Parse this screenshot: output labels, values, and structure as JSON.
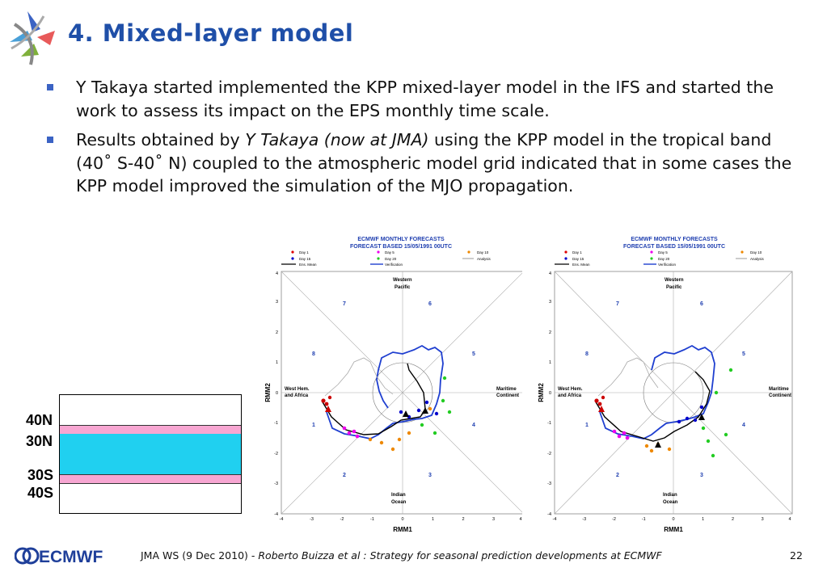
{
  "slide": {
    "title": "4. Mixed-layer model",
    "bullets": [
      {
        "text_a": "Y Takaya started implemented the KPP mixed-layer model in the IFS and started the work to assess its impact on the EPS monthly time scale."
      },
      {
        "text_a": "Results obtained by ",
        "text_italic": "Y Takaya (now at JMA)",
        "text_b": " using the KPP model in the tropical band (40˚ S-40˚ N) coupled to the atmospheric model grid indicated that in some cases the KPP model improved the simulation of the MJO propagation."
      }
    ],
    "band_labels": {
      "n40": "40N",
      "n30": "30N",
      "s30": "30S",
      "s40": "40S"
    },
    "colors": {
      "title": "#1f4fa8",
      "bullet": "#3b63c4",
      "mixed_layer": "#20d0f0",
      "band_edge": "#f7a6d2"
    }
  },
  "plots": {
    "header_line1": "ECMWF MONTHLY FORECASTS",
    "header_line2": "FORECAST  BASED 15/05/1991 00UTC",
    "legend": {
      "day1": "Day 1",
      "day5": "Day 5",
      "day10": "Day 10",
      "day15": "Day 15",
      "day20": "Day 20",
      "analysis": "Analysis",
      "ens_mean": "Ens. Mean",
      "verification": "Verification"
    },
    "xlabel": "RMM1",
    "ylabel": "RMM2",
    "ticks": [
      "-4",
      "-3",
      "-2",
      "-1",
      "0",
      "1",
      "2",
      "3",
      "4"
    ],
    "regions": {
      "western_pacific_1": "Western",
      "western_pacific_2": "Pacific",
      "west_hem_1": "West Hem.",
      "west_hem_2": "and Africa",
      "maritime_1": "Maritime",
      "maritime_2": "Continent",
      "indian_1": "Indian",
      "indian_2": "Ocean"
    },
    "phases": [
      "1",
      "2",
      "3",
      "4",
      "5",
      "6",
      "7",
      "8"
    ]
  },
  "footer": {
    "logo": "ECMWF",
    "text_a": "JMA WS (9 Dec 2010) -  ",
    "text_italic": "Roberto Buizza et al : Strategy for seasonal prediction developments at ECMWF",
    "page": "22"
  }
}
